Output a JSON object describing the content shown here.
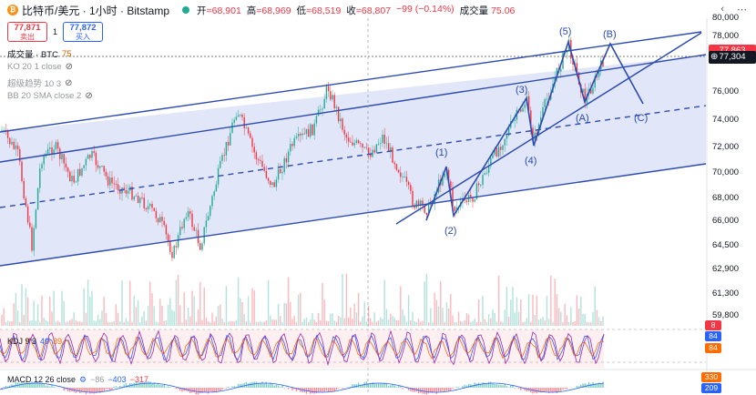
{
  "header": {
    "title": "比特币/美元 · 1小时 · Bitstamp",
    "open_label": "开",
    "open_value": "=68,901",
    "high_label": "高",
    "high_value": "=68,969",
    "low_label": "低",
    "low_value": "=68,519",
    "close_label": "收",
    "close_value": "=68,807",
    "change_value": "−99 (−0.14%)",
    "volume_label": "成交量",
    "volume_value": "75.06"
  },
  "trade": {
    "sell_price": "77,871",
    "sell_label": "卖出",
    "spread": "1",
    "buy_price": "77,872",
    "buy_label": "买入"
  },
  "legends": {
    "volume": "成交量 · BTC",
    "volume_num": "75",
    "ko": "KO 20 1 close",
    "trend": "超级趋势 10 3",
    "bb": "BB 20 SMA close 2"
  },
  "price_axis": [
    "80,000",
    "78,000",
    "76,000",
    "74,000",
    "72,000",
    "70,000",
    "68,000",
    "66,000",
    "64,500",
    "62,900",
    "61,300",
    "59,800"
  ],
  "price_tags": {
    "current": "77,304",
    "top": "77,863"
  },
  "waves": [
    "(1)",
    "(2)",
    "(3)",
    "(4)",
    "(5)",
    "(A)",
    "(B)",
    "(C)"
  ],
  "kdj": {
    "label": "KDJ 9 3",
    "k": "40",
    "d": "39",
    "tag1": "8",
    "tag2": "84",
    "tag3": "84"
  },
  "macd": {
    "label": "MACD 12 26 close",
    "v1": "−86",
    "v2": "−403",
    "v3": "−317",
    "tag1": "330",
    "tag2": "209"
  },
  "colors": {
    "up": "#22ab94",
    "down": "#f23645",
    "channel": "#2d4bb0",
    "channel_fill": "#c9d1f2"
  }
}
